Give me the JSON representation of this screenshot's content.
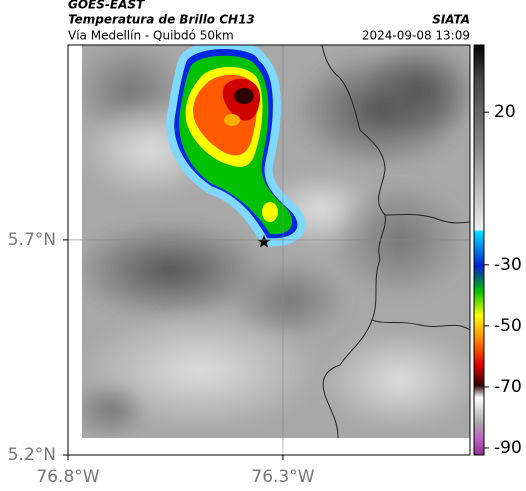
{
  "chart_data": {
    "type": "map",
    "title": "GOES-EAST",
    "subtitle": "Temperatura de Brillo CH13",
    "source": "SIATA",
    "region": "Vía Medellín - Quibdó 50km",
    "timestamp": "2024-09-08 13:09",
    "xlim": [
      -76.8,
      -75.865
    ],
    "ylim": [
      5.2,
      6.153
    ],
    "xticks": [
      {
        "value": -76.8,
        "label": "76.8°W"
      },
      {
        "value": -76.3,
        "label": "76.3°W"
      }
    ],
    "yticks": [
      {
        "value": 5.2,
        "label": "5.2°N"
      },
      {
        "value": 5.7,
        "label": "5.7°N"
      }
    ],
    "grid": true,
    "colorbar": {
      "lim": [
        42,
        -92.3
      ],
      "ticks": [
        20,
        -30,
        -50,
        -70,
        -90
      ]
    }
  }
}
